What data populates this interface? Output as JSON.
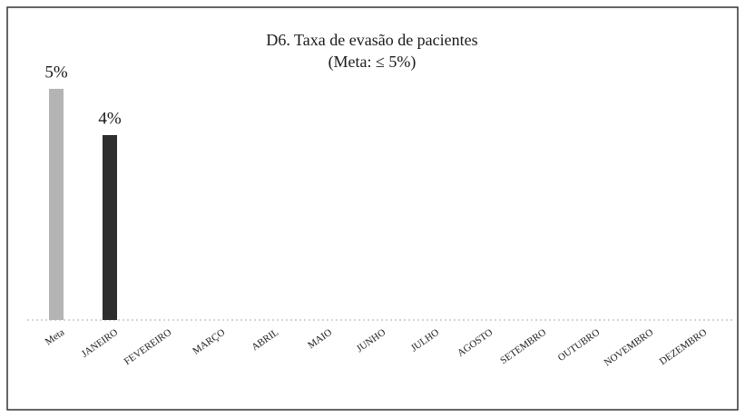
{
  "chart_data": {
    "type": "bar",
    "title": "D6. Taxa de evasão de pacientes",
    "subtitle": "(Meta: ≤ 5%)",
    "categories": [
      "Meta",
      "JANEIRO",
      "FEVEREIRO",
      "MARÇO",
      "ABRIL",
      "MAIO",
      "JUNHO",
      "JULHO",
      "AGOSTO",
      "SETEMBRO",
      "OUTUBRO",
      "NOVEMBRO",
      "DEZEMBRO"
    ],
    "values": [
      5,
      4,
      null,
      null,
      null,
      null,
      null,
      null,
      null,
      null,
      null,
      null,
      null
    ],
    "value_labels": [
      "5%",
      "4%",
      null,
      null,
      null,
      null,
      null,
      null,
      null,
      null,
      null,
      null,
      null
    ],
    "target_color": "#b4b4b4",
    "color": "#2e2e2e"
  }
}
